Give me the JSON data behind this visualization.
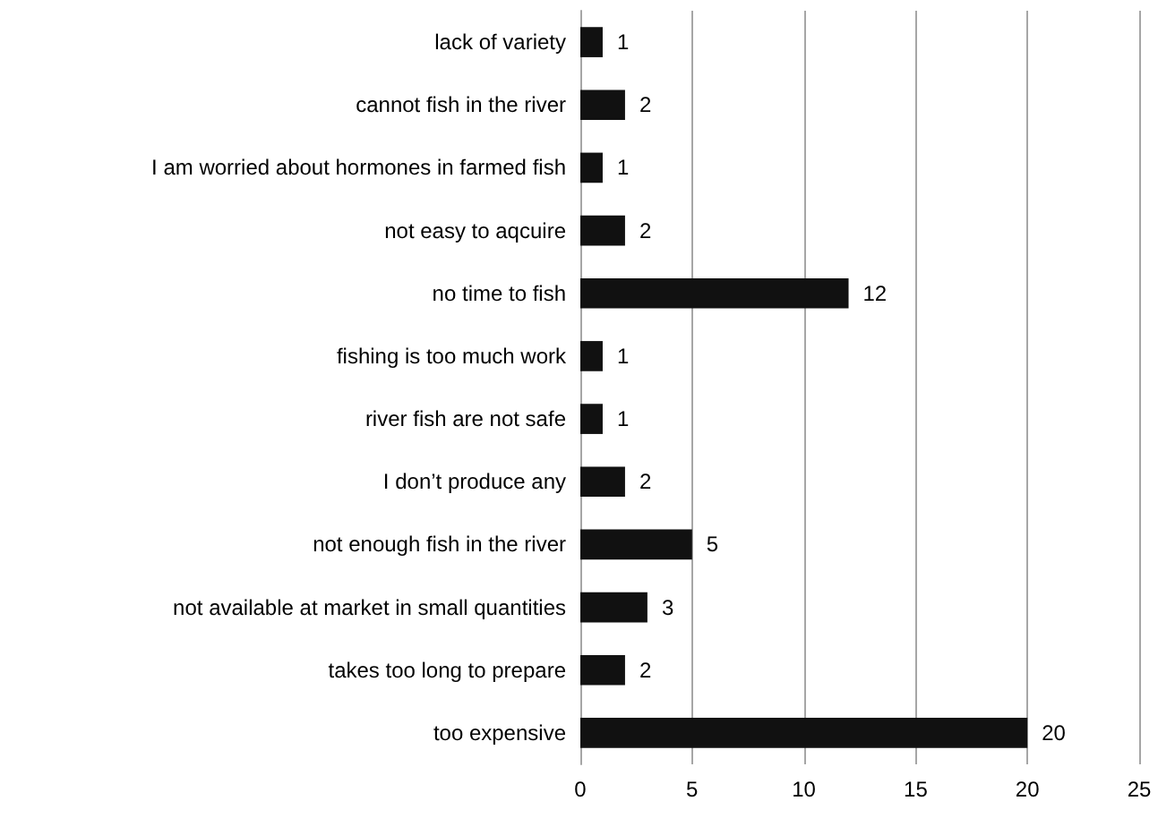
{
  "chart_data": {
    "type": "bar",
    "orientation": "horizontal",
    "categories": [
      "lack of variety",
      "cannot fish in the river",
      "I am worried about hormones in farmed fish",
      "not easy to aqcuire",
      "no time to fish",
      "fishing is too much work",
      "river fish are not safe",
      "I don’t produce any",
      "not enough fish in the river",
      "not available at market in small quantities",
      "takes too long to prepare",
      "too expensive"
    ],
    "values": [
      1,
      2,
      1,
      2,
      12,
      1,
      1,
      2,
      5,
      3,
      2,
      20
    ],
    "color": "#111111",
    "xlim": [
      0,
      25
    ],
    "xticks": [
      0,
      5,
      10,
      15,
      20,
      25
    ],
    "grid": "x",
    "data_labels": true
  }
}
